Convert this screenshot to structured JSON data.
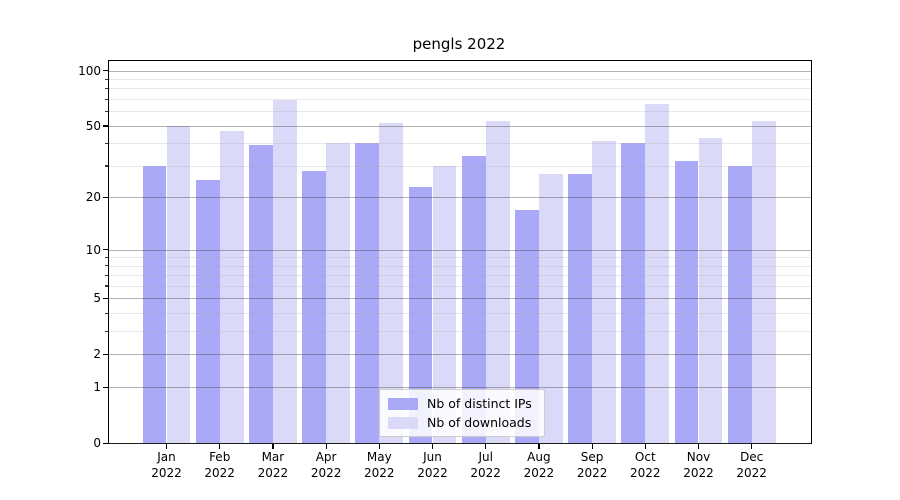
{
  "chart_data": {
    "type": "bar",
    "title": "pengls 2022",
    "categories": [
      "Jan",
      "Feb",
      "Mar",
      "Apr",
      "May",
      "Jun",
      "Jul",
      "Aug",
      "Sep",
      "Oct",
      "Nov",
      "Dec"
    ],
    "year_label": "2022",
    "series": [
      {
        "name": "Nb of distinct IPs",
        "color": "#a9a9f8",
        "values": [
          30,
          25,
          39,
          28,
          40,
          23,
          34,
          17,
          27,
          40,
          32,
          30
        ]
      },
      {
        "name": "Nb of downloads",
        "color": "#dadaf8",
        "values": [
          50,
          47,
          69,
          40,
          52,
          30,
          53,
          27,
          41,
          66,
          43,
          53
        ]
      }
    ],
    "xlabel": "",
    "ylabel": "",
    "yscale": "log-plus-one",
    "y_major_ticks": [
      0,
      1,
      2,
      5,
      10,
      20,
      50,
      100
    ],
    "y_minor_ticks": [
      3,
      4,
      6,
      7,
      8,
      9,
      30,
      40,
      60,
      70,
      80,
      90
    ],
    "ylim": [
      0,
      113
    ],
    "grid": "on",
    "legend_position": "lower center"
  }
}
